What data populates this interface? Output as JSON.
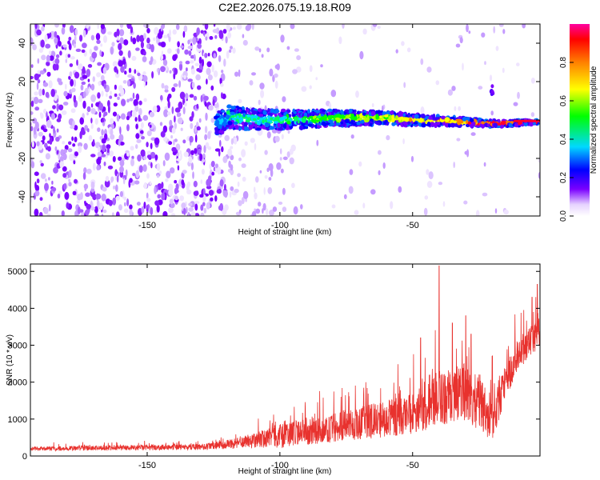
{
  "chart_data": [
    {
      "id": "spectrogram",
      "type": "heatmap",
      "title": "C2E2.2026.075.19.18.R09",
      "xlabel": "Height of straight line (km)",
      "ylabel": "Frequency (Hz)",
      "xlim": [
        -194,
        -2
      ],
      "ylim": [
        -50,
        50
      ],
      "xticks": [
        -150,
        -100,
        -50
      ],
      "yticks": [
        -40,
        -20,
        0,
        20,
        40
      ],
      "colorbar": {
        "label": "Normalized spectral amplitude",
        "range": [
          0,
          1
        ],
        "ticks": [
          "0.0",
          "0.2",
          "0.4",
          "0.6",
          "0.8"
        ],
        "colors": [
          "#ffffff",
          "#e6d2ff",
          "#7a00ff",
          "#0000ff",
          "#00d8ff",
          "#00ff00",
          "#ffff00",
          "#ff8000",
          "#ff0060"
        ]
      },
      "trace": {
        "description": "narrowband carrier near 0 Hz",
        "points": [
          [
            -120,
            2
          ],
          [
            -110,
            0
          ],
          [
            -100,
            0
          ],
          [
            -80,
            1
          ],
          [
            -60,
            1
          ],
          [
            -50,
            0
          ],
          [
            -30,
            -1
          ],
          [
            -20,
            -2
          ],
          [
            -2,
            -1
          ]
        ]
      },
      "spur": {
        "x": -20,
        "y": 16
      }
    },
    {
      "id": "snr",
      "type": "line",
      "xlabel": "Height of straight line (km)",
      "ylabel": "SNR (10 * v/v)",
      "xlim": [
        -194,
        -2
      ],
      "ylim": [
        0,
        5200
      ],
      "xticks": [
        -150,
        -100,
        -50
      ],
      "yticks": [
        0,
        1000,
        2000,
        3000,
        4000,
        5000
      ],
      "series": [
        {
          "name": "SNR",
          "color": "#e8322e",
          "envelope": {
            "x": [
              -194,
              -130,
              -115,
              -100,
              -90,
              -80,
              -70,
              -60,
              -50,
              -45,
              -40,
              -35,
              -30,
              -25,
              -20,
              -15,
              -10,
              -5,
              -2
            ],
            "base": [
              180,
              220,
              300,
              450,
              550,
              650,
              750,
              850,
              1000,
              1150,
              1300,
              1450,
              1500,
              1200,
              800,
              1900,
              2600,
              3000,
              3300
            ],
            "spread": [
              120,
              160,
              300,
              650,
              700,
              800,
              900,
              1000,
              1200,
              1300,
              1400,
              1500,
              1600,
              1500,
              1200,
              1000,
              900,
              900,
              800
            ]
          },
          "spikes": [
            [
              -40,
              5150
            ],
            [
              -30,
              3800
            ],
            [
              -28,
              3300
            ],
            [
              -35,
              3600
            ],
            [
              -20,
              2700
            ],
            [
              -5,
              4300
            ],
            [
              -3,
              4650
            ],
            [
              -47,
              3200
            ]
          ]
        }
      ]
    }
  ]
}
